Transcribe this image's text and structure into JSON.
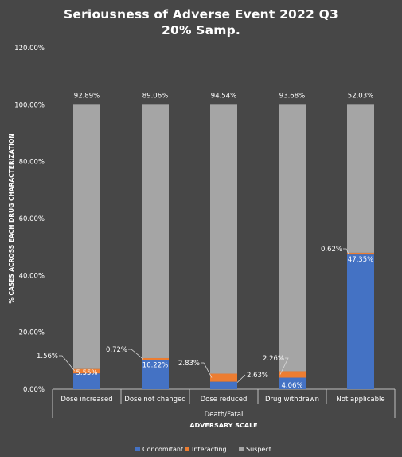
{
  "chart_data": {
    "type": "bar",
    "stacked": true,
    "title_line1": "Seriousness of Adverse Event 2022 Q3",
    "title_line2": "20% Samp.",
    "ylabel": "% CASES ACROSS EACH DRUG CHARACTERIZATION",
    "xlabel_group": "Death/Fatal",
    "xlabel": "ADVERSARY SCALE",
    "ylim": [
      0,
      120
    ],
    "yticks": [
      "0.00%",
      "20.00%",
      "40.00%",
      "60.00%",
      "80.00%",
      "100.00%",
      "120.00%"
    ],
    "grid": false,
    "legend_position": "bottom",
    "categories": [
      "Dose increased",
      "Dose not changed",
      "Dose reduced",
      "Drug withdrawn",
      "Not applicable"
    ],
    "series": [
      {
        "name": "Concomitant",
        "color": "#4472C4",
        "values": [
          5.55,
          10.22,
          2.63,
          4.06,
          47.35
        ],
        "labels": [
          "5.55%",
          "10.22%",
          "2.63%",
          "4.06%",
          "47.35%"
        ]
      },
      {
        "name": "Interacting",
        "color": "#ED7D31",
        "values": [
          1.56,
          0.72,
          2.83,
          2.26,
          0.62
        ],
        "labels": [
          "1.56%",
          "0.72%",
          "2.83%",
          "2.26%",
          "0.62%"
        ]
      },
      {
        "name": "Suspect",
        "color": "#A5A5A5",
        "values": [
          92.89,
          89.06,
          94.54,
          93.68,
          52.03
        ],
        "labels": [
          "92.89%",
          "89.06%",
          "94.54%",
          "93.68%",
          "52.03%"
        ]
      }
    ]
  }
}
